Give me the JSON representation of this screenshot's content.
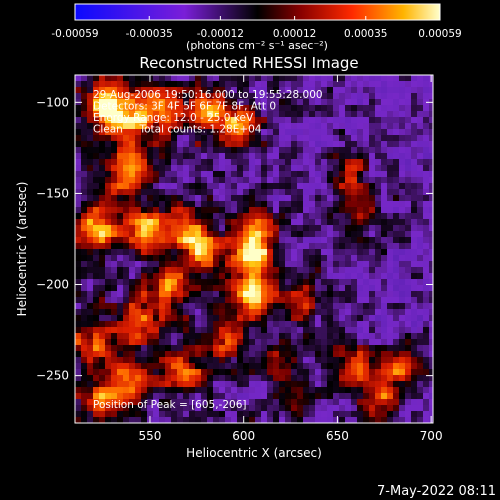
{
  "chart_data": {
    "type": "heatmap",
    "title": "Reconstructed RHESSI Image",
    "xlabel": "Heliocentric X (arcsec)",
    "ylabel": "Heliocentric Y (arcsec)",
    "xlim": [
      510,
      701
    ],
    "ylim": [
      -276,
      -85
    ],
    "x_ticks": [
      550,
      600,
      650,
      700
    ],
    "y_ticks": [
      -100,
      -150,
      -200,
      -250
    ],
    "colorbar": {
      "range": [
        -0.00059,
        0.00059
      ],
      "tick_values": [
        -0.00059,
        -0.00035,
        -0.00012,
        0.00012,
        0.00035,
        0.00059
      ],
      "tick_labels": [
        "-0.00059",
        "-0.00035",
        "-0.00012",
        "0.00012",
        "0.00035",
        "0.00059"
      ],
      "label": "(photons cm⁻² s⁻¹ asec⁻²)"
    },
    "annotations": [
      "29-Aug-2006 19:50:16.000 to 19:55:28.000",
      "Detectors: 3F 4F 5F 6F 7F 8F, Att 0",
      "Energy Range: 12.0 - 25.0 keV",
      "Clean     Total counts: 1.28E+04"
    ],
    "peak_label": "Position of Peak = [605,-206]",
    "peak": {
      "x": 605,
      "y": -206
    },
    "bright_regions": [
      {
        "x": 527,
        "y": -102,
        "w": 1.0
      },
      {
        "x": 538,
        "y": -112,
        "w": 0.85
      },
      {
        "x": 555,
        "y": -104,
        "w": 0.8
      },
      {
        "x": 580,
        "y": -104,
        "w": 0.75
      },
      {
        "x": 597,
        "y": -112,
        "w": 0.75
      },
      {
        "x": 540,
        "y": -140,
        "w": 0.85
      },
      {
        "x": 522,
        "y": -168,
        "w": 0.9
      },
      {
        "x": 548,
        "y": -170,
        "w": 0.85
      },
      {
        "x": 570,
        "y": -168,
        "w": 0.8
      },
      {
        "x": 578,
        "y": -182,
        "w": 0.75
      },
      {
        "x": 604,
        "y": -186,
        "w": 1.0
      },
      {
        "x": 605,
        "y": -206,
        "w": 1.05
      },
      {
        "x": 606,
        "y": -170,
        "w": 0.8
      },
      {
        "x": 562,
        "y": -200,
        "w": 0.8
      },
      {
        "x": 545,
        "y": -220,
        "w": 0.75
      },
      {
        "x": 520,
        "y": -232,
        "w": 0.7
      },
      {
        "x": 540,
        "y": -252,
        "w": 0.7
      },
      {
        "x": 525,
        "y": -262,
        "w": 0.7
      },
      {
        "x": 567,
        "y": -248,
        "w": 0.7
      },
      {
        "x": 590,
        "y": -230,
        "w": 0.65
      },
      {
        "x": 657,
        "y": -138,
        "w": 0.6
      },
      {
        "x": 660,
        "y": -160,
        "w": 0.55
      },
      {
        "x": 632,
        "y": -210,
        "w": 0.55
      },
      {
        "x": 618,
        "y": -240,
        "w": 0.55
      },
      {
        "x": 660,
        "y": -245,
        "w": 0.8
      },
      {
        "x": 685,
        "y": -245,
        "w": 0.75
      },
      {
        "x": 672,
        "y": -262,
        "w": 0.65
      },
      {
        "x": 628,
        "y": -262,
        "w": 0.55
      }
    ]
  },
  "footer": {
    "timestamp": "7-May-2022 08:11"
  }
}
